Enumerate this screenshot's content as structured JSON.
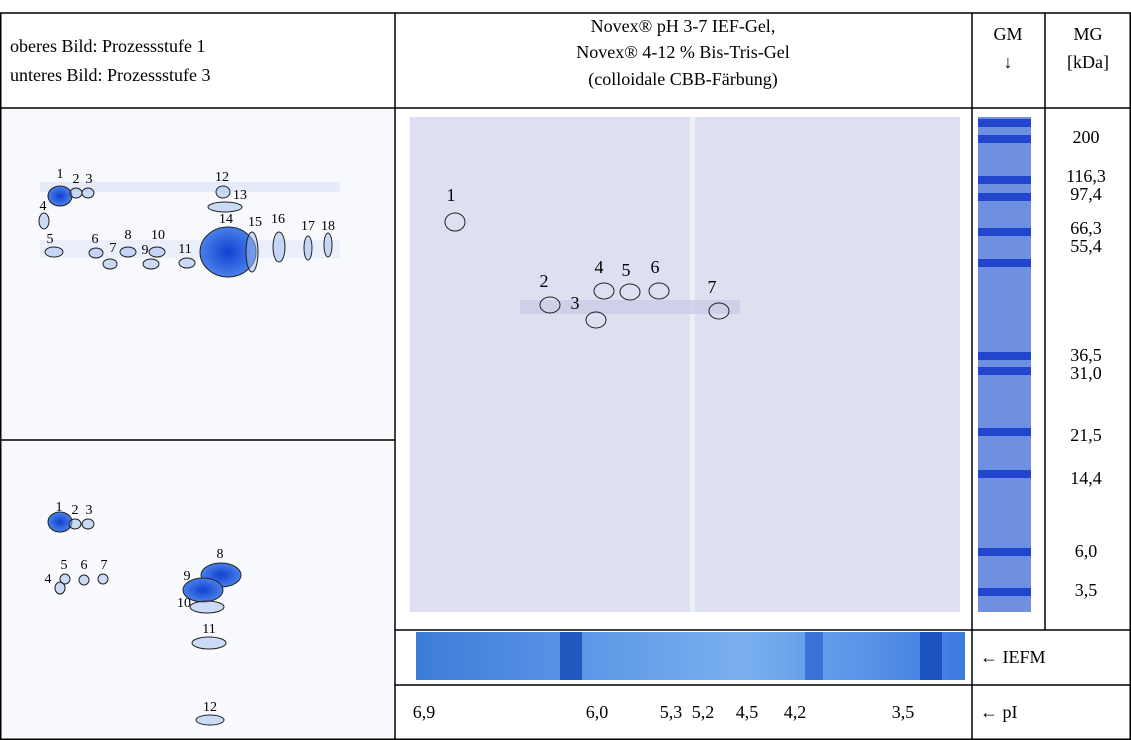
{
  "header": {
    "left": [
      "oberes Bild: Prozessstufe 1",
      "unteres Bild: Prozessstufe 3"
    ],
    "center": [
      "Novex® pH 3-7 IEF-Gel,",
      "Novex® 4-12 % Bis-Tris-Gel",
      "(colloidale CBB-Färbung)"
    ],
    "gm": [
      "GM",
      "↓"
    ],
    "mg": [
      "MG",
      "[kDa]"
    ]
  },
  "upper_image": {
    "spots": [
      "1",
      "2",
      "3",
      "4",
      "5",
      "6",
      "7",
      "8",
      "9",
      "10",
      "11",
      "12",
      "13",
      "14",
      "15",
      "16",
      "17",
      "18"
    ]
  },
  "lower_image": {
    "spots": [
      "1",
      "2",
      "3",
      "4",
      "5",
      "6",
      "7",
      "8",
      "9",
      "10",
      "11",
      "12"
    ]
  },
  "gel": {
    "spots": [
      "1",
      "2",
      "3",
      "4",
      "5",
      "6",
      "7"
    ]
  },
  "marker_weights": [
    "200",
    "116,3",
    "97,4",
    "66,3",
    "55,4",
    "36,5",
    "31,0",
    "21,5",
    "14,4",
    "6,0",
    "3,5"
  ],
  "iefm_label": "← IEFM",
  "pi_values": [
    "6,9",
    "6,0",
    "5,3",
    "5,2",
    "4,5",
    "4,2",
    "3,5"
  ],
  "pi_label": "← pI"
}
